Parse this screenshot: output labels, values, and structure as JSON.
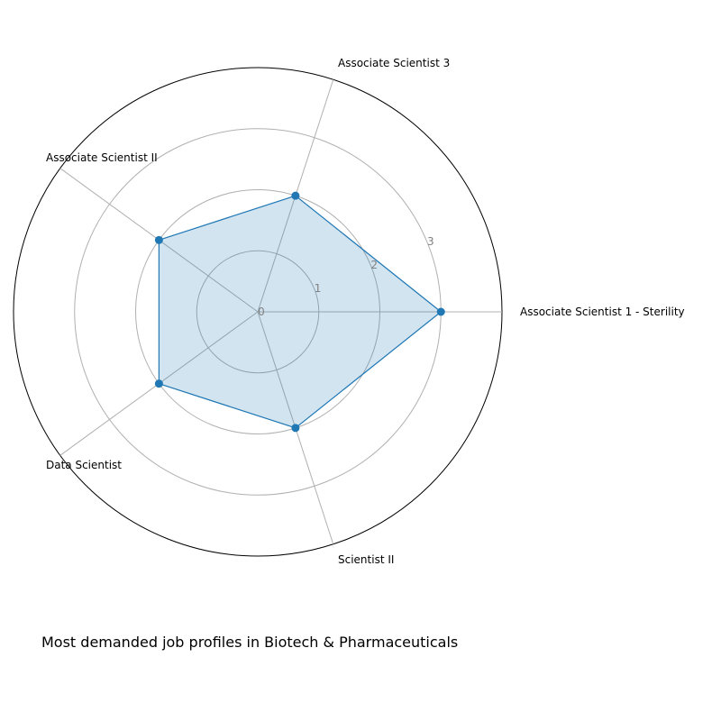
{
  "chart_data": {
    "type": "radar",
    "title": "Most demanded job profiles in Biotech & Pharmaceuticals",
    "categories": [
      "Associate Scientist 1 - Sterility",
      "Associate Scientist 3",
      "Associate Scientist II",
      "Data Scientist",
      "Scientist II"
    ],
    "series": [
      {
        "values": [
          3,
          2,
          2,
          2,
          2
        ]
      }
    ],
    "r_ticks": [
      0,
      1,
      2,
      3
    ],
    "rlim": [
      0,
      4
    ],
    "grid": true,
    "colors": {
      "line": "#1f77b4",
      "fill": "#1f77b4",
      "grid": "#b0b0b0",
      "spine": "#000000",
      "tick": "#808080"
    }
  }
}
